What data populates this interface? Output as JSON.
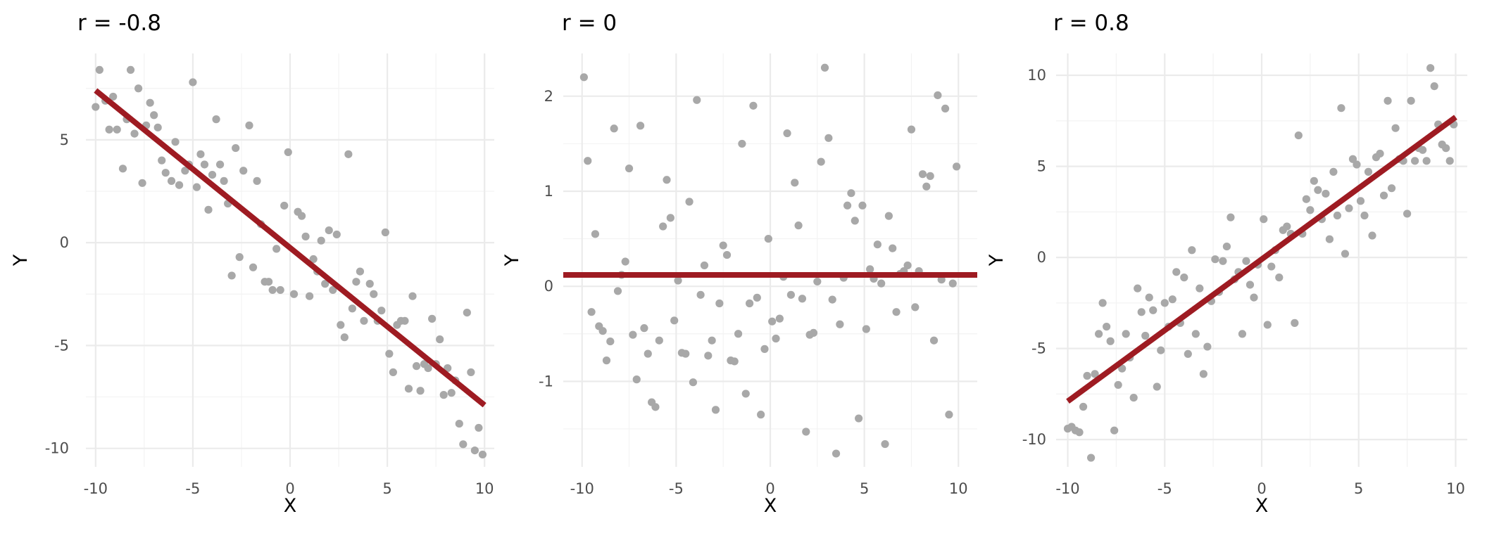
{
  "chart_data": [
    {
      "type": "scatter",
      "title": "r = -0.8",
      "xlabel": "X",
      "ylabel": "Y",
      "xlim": [
        -10.5,
        10.5
      ],
      "ylim": [
        -10.9,
        9.2
      ],
      "x_ticks": [
        -10,
        -5,
        0,
        5,
        10
      ],
      "y_ticks": [
        -10,
        -5,
        0,
        5
      ],
      "x_tick_labels": [
        "-10",
        "-5",
        "0",
        "5",
        "10"
      ],
      "y_tick_labels": [
        "-10",
        "-5",
        "0",
        "5"
      ],
      "grid": true,
      "fit_line": {
        "x": [
          -10,
          10
        ],
        "y": [
          7.4,
          -7.9
        ]
      },
      "points": {
        "x": [
          -10,
          -9.8,
          -9.5,
          -9.3,
          -9.1,
          -8.9,
          -8.6,
          -8.4,
          -8.2,
          -8,
          -7.8,
          -7.6,
          -7.4,
          -7.2,
          -7,
          -6.8,
          -6.6,
          -6.4,
          -6.1,
          -5.9,
          -5.7,
          -5.4,
          -5.2,
          -5,
          -4.8,
          -4.6,
          -4.4,
          -4.2,
          -4,
          -3.8,
          -3.6,
          -3.4,
          -3.2,
          -3,
          -2.8,
          -2.6,
          -2.4,
          -2.1,
          -1.9,
          -1.7,
          -1.5,
          -1.3,
          -1.1,
          -0.9,
          -0.7,
          -0.5,
          -0.3,
          -0.1,
          0.2,
          0.4,
          0.6,
          0.8,
          1,
          1.2,
          1.4,
          1.6,
          1.8,
          2,
          2.2,
          2.4,
          2.6,
          2.8,
          3,
          3.2,
          3.4,
          3.6,
          3.8,
          4.1,
          4.3,
          4.5,
          4.7,
          4.9,
          5.1,
          5.3,
          5.5,
          5.7,
          5.9,
          6.1,
          6.3,
          6.5,
          6.7,
          6.9,
          7.1,
          7.3,
          7.5,
          7.7,
          7.9,
          8.1,
          8.3,
          8.5,
          8.7,
          8.9,
          9.1,
          9.3,
          9.5,
          9.7,
          9.9
        ],
        "y": [
          6.6,
          8.4,
          6.9,
          5.5,
          7.1,
          5.5,
          3.6,
          6,
          8.4,
          5.3,
          7.5,
          2.9,
          5.7,
          6.8,
          6.2,
          5.6,
          4,
          3.4,
          3,
          4.9,
          2.8,
          3.5,
          3.8,
          7.8,
          2.7,
          4.3,
          3.8,
          1.6,
          3.3,
          6,
          3.8,
          3,
          1.9,
          -1.6,
          4.6,
          -0.7,
          3.5,
          5.7,
          -1.2,
          3,
          0.9,
          -1.9,
          -1.9,
          -2.3,
          -0.3,
          -2.3,
          1.8,
          4.4,
          -2.5,
          1.5,
          1.3,
          0.3,
          -2.6,
          -0.8,
          -1.4,
          0.1,
          -2,
          0.6,
          -2.3,
          0.4,
          -4,
          -4.6,
          4.3,
          -3.2,
          -1.9,
          -1.4,
          -3.8,
          -2,
          -2.5,
          -3.8,
          -3.3,
          0.5,
          -5.4,
          -6.3,
          -4,
          -3.8,
          -3.8,
          -7.1,
          -2.6,
          -6,
          -7.2,
          -5.9,
          -6.1,
          -3.7,
          -5.9,
          -4.7,
          -7.4,
          -6.1,
          -7.3,
          -6.7,
          -8.8,
          -9.8,
          -3.4,
          -6.3,
          -10.1,
          -9,
          -10.3
        ]
      }
    },
    {
      "type": "scatter",
      "title": "r = 0",
      "xlabel": "X",
      "ylabel": "Y",
      "xlim": [
        -11,
        11
      ],
      "ylim": [
        -1.9,
        2.45
      ],
      "x_ticks": [
        -10,
        -5,
        0,
        5,
        10
      ],
      "y_ticks": [
        -1,
        0,
        1,
        2
      ],
      "x_tick_labels": [
        "-10",
        "-5",
        "0",
        "5",
        "10"
      ],
      "y_tick_labels": [
        "-1",
        "0",
        "1",
        "2"
      ],
      "grid": true,
      "fit_line": {
        "x": [
          -11,
          11
        ],
        "y": [
          0.12,
          0.12
        ]
      },
      "points": {
        "x": [
          -9.9,
          -9.7,
          -9.5,
          -9.3,
          -9.1,
          -8.9,
          -8.7,
          -8.5,
          -8.3,
          -8.1,
          -7.9,
          -7.7,
          -7.5,
          -7.3,
          -7.1,
          -6.9,
          -6.7,
          -6.5,
          -6.3,
          -6.1,
          -5.9,
          -5.7,
          -5.5,
          -5.3,
          -5.1,
          -4.9,
          -4.7,
          -4.5,
          -4.3,
          -4.1,
          -3.9,
          -3.7,
          -3.5,
          -3.3,
          -3.1,
          -2.9,
          -2.7,
          -2.5,
          -2.3,
          -2.1,
          -1.9,
          -1.7,
          -1.5,
          -1.3,
          -1.1,
          -0.9,
          -0.7,
          -0.5,
          -0.3,
          -0.1,
          0.1,
          0.3,
          0.5,
          0.7,
          0.9,
          1.1,
          1.3,
          1.5,
          1.7,
          1.9,
          2.1,
          2.3,
          2.5,
          2.7,
          2.9,
          3.1,
          3.3,
          3.5,
          3.7,
          3.9,
          4.1,
          4.3,
          4.5,
          4.7,
          4.9,
          5.1,
          5.3,
          5.5,
          5.7,
          5.9,
          6.1,
          6.3,
          6.5,
          6.7,
          6.9,
          7.1,
          7.3,
          7.5,
          7.7,
          7.9,
          8.1,
          8.3,
          8.5,
          8.7,
          8.9,
          9.1,
          9.3,
          9.5,
          9.7,
          9.9
        ],
        "y": [
          2.2,
          1.32,
          -0.27,
          0.55,
          -0.42,
          -0.47,
          -0.78,
          -0.58,
          1.66,
          -0.05,
          0.12,
          0.26,
          1.24,
          -0.51,
          -0.98,
          1.69,
          -0.44,
          -0.71,
          -1.22,
          -1.27,
          -0.57,
          0.63,
          1.12,
          0.72,
          -0.36,
          0.06,
          -0.7,
          -0.71,
          0.89,
          -1.01,
          1.96,
          -0.09,
          0.22,
          -0.73,
          -0.57,
          -1.3,
          -0.18,
          0.43,
          0.33,
          -0.78,
          -0.79,
          -0.5,
          1.5,
          -1.13,
          -0.18,
          1.9,
          -0.12,
          -1.35,
          -0.66,
          0.5,
          -0.37,
          -0.55,
          -0.34,
          0.1,
          1.61,
          -0.09,
          1.09,
          0.64,
          -0.13,
          -1.53,
          -0.51,
          -0.49,
          0.05,
          1.31,
          2.3,
          1.56,
          -0.14,
          -1.76,
          -0.4,
          0.09,
          0.85,
          0.98,
          0.69,
          -1.39,
          0.85,
          -0.45,
          0.18,
          0.08,
          0.44,
          0.03,
          -1.66,
          0.74,
          0.4,
          -0.27,
          0.13,
          0.16,
          0.22,
          1.65,
          -0.22,
          0.16,
          1.18,
          1.05,
          1.16,
          -0.57,
          2.01,
          0.07,
          1.87,
          -1.35,
          0.03,
          1.26
        ]
      }
    },
    {
      "type": "scatter",
      "title": "r = 0.8",
      "xlabel": "X",
      "ylabel": "Y",
      "xlim": [
        -10.6,
        10.6
      ],
      "ylim": [
        -11.5,
        11.2
      ],
      "x_ticks": [
        -10,
        -5,
        0,
        5,
        10
      ],
      "y_ticks": [
        -10,
        -5,
        0,
        5,
        10
      ],
      "x_tick_labels": [
        "-10",
        "-5",
        "0",
        "5",
        "10"
      ],
      "y_tick_labels": [
        "-10",
        "-5",
        "0",
        "5",
        "10"
      ],
      "grid": true,
      "fit_line": {
        "x": [
          -10,
          10
        ],
        "y": [
          -7.9,
          7.7
        ]
      },
      "points": {
        "x": [
          -10,
          -9.8,
          -9.6,
          -9.4,
          -9.2,
          -9,
          -8.8,
          -8.6,
          -8.4,
          -8.2,
          -8,
          -7.8,
          -7.6,
          -7.4,
          -7.2,
          -7,
          -6.8,
          -6.6,
          -6.4,
          -6.2,
          -6,
          -5.8,
          -5.6,
          -5.4,
          -5.2,
          -5,
          -4.8,
          -4.6,
          -4.4,
          -4.2,
          -4,
          -3.8,
          -3.6,
          -3.4,
          -3.2,
          -3,
          -2.8,
          -2.6,
          -2.4,
          -2.2,
          -2,
          -1.8,
          -1.6,
          -1.4,
          -1.2,
          -1,
          -0.8,
          -0.6,
          -0.4,
          -0.2,
          0.1,
          0.3,
          0.5,
          0.7,
          0.9,
          1.1,
          1.3,
          1.5,
          1.7,
          1.9,
          2.1,
          2.3,
          2.5,
          2.7,
          2.9,
          3.1,
          3.3,
          3.5,
          3.7,
          3.9,
          4.1,
          4.3,
          4.5,
          4.7,
          4.9,
          5.1,
          5.3,
          5.5,
          5.7,
          5.9,
          6.1,
          6.3,
          6.5,
          6.7,
          6.9,
          7.1,
          7.3,
          7.5,
          7.7,
          7.9,
          8.1,
          8.3,
          8.5,
          8.7,
          8.9,
          9.1,
          9.3,
          9.5,
          9.7,
          9.9
        ],
        "y": [
          -9.4,
          -9.3,
          -9.5,
          -9.6,
          -8.2,
          -6.5,
          -11,
          -6.4,
          -4.2,
          -2.5,
          -3.8,
          -4.6,
          -9.5,
          -7,
          -6.1,
          -4.2,
          -5.5,
          -7.7,
          -1.7,
          -3,
          -4.3,
          -2.2,
          -2.9,
          -7.1,
          -5.1,
          -2.5,
          -3.8,
          -2.3,
          -0.8,
          -3.6,
          -1.1,
          -5.3,
          0.4,
          -4.2,
          -1.7,
          -6.4,
          -4.9,
          -2.4,
          -0.1,
          -1.9,
          -0.2,
          0.6,
          2.2,
          -1.2,
          -0.8,
          -4.2,
          -0.2,
          -1.5,
          -2.2,
          -0.4,
          2.1,
          -3.7,
          -0.5,
          0.4,
          -1.1,
          1.5,
          1.7,
          1.3,
          -3.6,
          6.7,
          1.3,
          3.2,
          2.6,
          4.2,
          3.7,
          2.1,
          3.5,
          1,
          4.7,
          2.3,
          8.2,
          0.2,
          2.7,
          5.4,
          5.1,
          3.1,
          2.3,
          4.7,
          1.2,
          5.5,
          5.7,
          3.4,
          8.6,
          3.8,
          7.1,
          5.4,
          5.3,
          2.4,
          8.6,
          5.3,
          6,
          5.9,
          5.3,
          10.4,
          9.4,
          7.3,
          6.2,
          6,
          5.3,
          7.3
        ]
      }
    }
  ],
  "colors": {
    "points": "#a8a8a8",
    "fit_line": "#9e1b22",
    "grid": "#ebebeb",
    "tick_text": "#4d4d4d",
    "title_text": "#000000"
  }
}
